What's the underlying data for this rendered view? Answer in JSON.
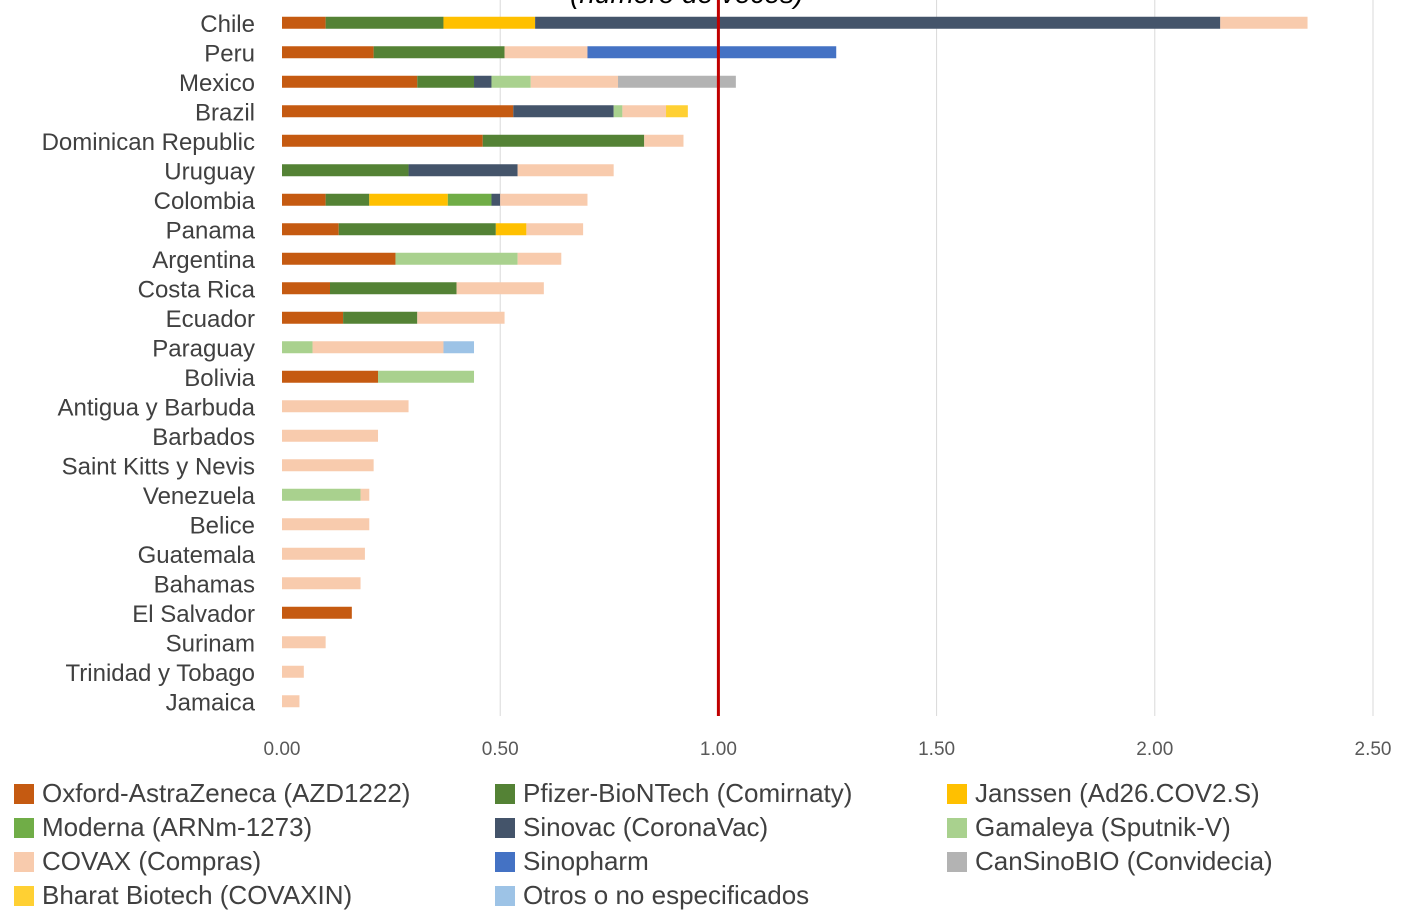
{
  "chart_data": {
    "type": "bar",
    "orientation": "horizontal",
    "stacked": true,
    "title": "(número de veces)",
    "xlabel": "",
    "ylabel": "",
    "xlim": [
      0,
      2.5
    ],
    "xticks": [
      "0.00",
      "0.50",
      "1.00",
      "1.50",
      "2.00",
      "2.50"
    ],
    "xtick_values": [
      0,
      0.5,
      1.0,
      1.5,
      2.0,
      2.5
    ],
    "reference_line": {
      "x": 1.0,
      "color": "#c00000"
    },
    "grid": "vertical",
    "legend_position": "bottom",
    "categories": [
      "Chile",
      "Peru",
      "Mexico",
      "Brazil",
      "Dominican Republic",
      "Uruguay",
      "Colombia",
      "Panama",
      "Argentina",
      "Costa Rica",
      "Ecuador",
      "Paraguay",
      "Bolivia",
      "Antigua y Barbuda",
      "Barbados",
      "Saint Kitts y Nevis",
      "Venezuela",
      "Belice",
      "Guatemala",
      "Bahamas",
      "El Salvador",
      "Surinam",
      "Trinidad y Tobago",
      "Jamaica"
    ],
    "series": [
      {
        "name": "Oxford-AstraZeneca (AZD1222)",
        "color": "#c55a11",
        "values": [
          0.1,
          0.21,
          0.31,
          0.53,
          0.46,
          0,
          0.1,
          0.13,
          0.26,
          0.11,
          0.14,
          0,
          0.22,
          0,
          0,
          0,
          0,
          0,
          0,
          0,
          0.16,
          0,
          0,
          0
        ]
      },
      {
        "name": "Pfizer-BioNTech (Comirnaty)",
        "color": "#548235",
        "values": [
          0.27,
          0.3,
          0.13,
          0,
          0.37,
          0.29,
          0.1,
          0.36,
          0,
          0.29,
          0.17,
          0,
          0,
          0,
          0,
          0,
          0,
          0,
          0,
          0,
          0,
          0,
          0,
          0
        ]
      },
      {
        "name": "Janssen (Ad26.COV2.S)",
        "color": "#ffc000",
        "values": [
          0.21,
          0,
          0,
          0,
          0,
          0,
          0.18,
          0.07,
          0,
          0,
          0,
          0,
          0,
          0,
          0,
          0,
          0,
          0,
          0,
          0,
          0,
          0,
          0,
          0
        ]
      },
      {
        "name": "Moderna (ARNm-1273)",
        "color": "#70ad47",
        "values": [
          0,
          0,
          0,
          0,
          0,
          0,
          0.1,
          0,
          0,
          0,
          0,
          0,
          0,
          0,
          0,
          0,
          0,
          0,
          0,
          0,
          0,
          0,
          0,
          0
        ]
      },
      {
        "name": "Sinovac (CoronaVac)",
        "color": "#44546a",
        "values": [
          1.57,
          0,
          0.04,
          0.23,
          0,
          0.25,
          0.02,
          0,
          0,
          0,
          0,
          0,
          0,
          0,
          0,
          0,
          0,
          0,
          0,
          0,
          0,
          0,
          0,
          0
        ]
      },
      {
        "name": "Gamaleya (Sputnik-V)",
        "color": "#a9d18e",
        "values": [
          0,
          0,
          0.09,
          0.02,
          0,
          0,
          0,
          0,
          0.28,
          0,
          0,
          0.07,
          0.22,
          0,
          0,
          0,
          0.18,
          0,
          0,
          0,
          0,
          0,
          0,
          0
        ]
      },
      {
        "name": "COVAX (Compras)",
        "color": "#f8cbad",
        "values": [
          0.2,
          0.19,
          0.2,
          0.1,
          0.09,
          0.22,
          0.2,
          0.13,
          0.1,
          0.2,
          0.2,
          0.3,
          0,
          0.29,
          0.22,
          0.21,
          0.02,
          0.2,
          0.19,
          0.18,
          0,
          0.1,
          0.05,
          0.04
        ]
      },
      {
        "name": "Sinopharm",
        "color": "#4472c4",
        "values": [
          0,
          0.57,
          0,
          0,
          0,
          0,
          0,
          0,
          0,
          0,
          0,
          0,
          0,
          0,
          0,
          0,
          0,
          0,
          0,
          0,
          0,
          0,
          0,
          0
        ]
      },
      {
        "name": "CanSinoBIO (Convidecia)",
        "color": "#b3b3b3",
        "values": [
          0,
          0,
          0.27,
          0,
          0,
          0,
          0,
          0,
          0,
          0,
          0,
          0,
          0,
          0,
          0,
          0,
          0,
          0,
          0,
          0,
          0,
          0,
          0,
          0
        ]
      },
      {
        "name": "Bharat Biotech (COVAXIN)",
        "color": "#ffd033",
        "values": [
          0,
          0,
          0,
          0.05,
          0,
          0,
          0,
          0,
          0,
          0,
          0,
          0,
          0,
          0,
          0,
          0,
          0,
          0,
          0,
          0,
          0,
          0,
          0,
          0
        ]
      },
      {
        "name": "Otros o no especificados",
        "color": "#9dc3e6",
        "values": [
          0,
          0,
          0,
          0,
          0,
          0,
          0,
          0,
          0,
          0,
          0,
          0.07,
          0,
          0,
          0,
          0,
          0,
          0,
          0,
          0,
          0,
          0,
          0,
          0
        ]
      }
    ]
  }
}
